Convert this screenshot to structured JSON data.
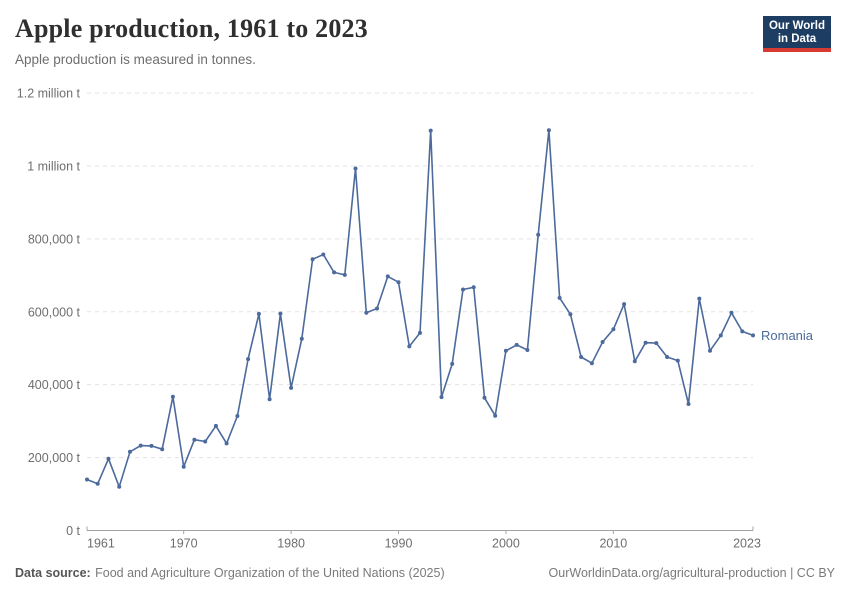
{
  "header": {
    "title": "Apple production, 1961 to 2023",
    "subtitle": "Apple production is measured in tonnes.",
    "logo": {
      "line1": "Our World",
      "line2": "in Data"
    }
  },
  "chart_data": {
    "type": "line",
    "title": "Apple production, 1961 to 2023",
    "ylabel": "",
    "xlabel": "",
    "unit": "tonnes",
    "xlim": [
      1961,
      2023
    ],
    "ylim": [
      0,
      1200000
    ],
    "grid": "horizontal-dashed",
    "legend_position": "end-of-line-label",
    "x_ticks": [
      1961,
      1970,
      1980,
      1990,
      2000,
      2010,
      2023
    ],
    "y_ticks": [
      {
        "value": 0,
        "label": "0 t"
      },
      {
        "value": 200000,
        "label": "200,000 t"
      },
      {
        "value": 400000,
        "label": "400,000 t"
      },
      {
        "value": 600000,
        "label": "600,000 t"
      },
      {
        "value": 800000,
        "label": "800,000 t"
      },
      {
        "value": 1000000,
        "label": "1 million t"
      },
      {
        "value": 1200000,
        "label": "1.2 million t"
      }
    ],
    "series": [
      {
        "name": "Romania",
        "color": "#4c6a9c",
        "years": [
          1961,
          1962,
          1963,
          1964,
          1965,
          1966,
          1967,
          1968,
          1969,
          1970,
          1971,
          1972,
          1973,
          1974,
          1975,
          1976,
          1977,
          1978,
          1979,
          1980,
          1981,
          1982,
          1983,
          1984,
          1985,
          1986,
          1987,
          1988,
          1989,
          1990,
          1991,
          1992,
          1993,
          1994,
          1995,
          1996,
          1997,
          1998,
          1999,
          2000,
          2001,
          2002,
          2003,
          2004,
          2005,
          2006,
          2007,
          2008,
          2009,
          2010,
          2011,
          2012,
          2013,
          2014,
          2015,
          2016,
          2017,
          2018,
          2019,
          2020,
          2021,
          2022,
          2023
        ],
        "values": [
          140000,
          128000,
          197000,
          120000,
          216000,
          233000,
          232000,
          223000,
          367000,
          175000,
          249000,
          244000,
          287000,
          239000,
          314000,
          470000,
          594000,
          360000,
          595000,
          391000,
          526000,
          744000,
          757000,
          708000,
          701000,
          993000,
          597000,
          609000,
          697000,
          681000,
          505000,
          542000,
          1097000,
          366000,
          457000,
          661000,
          667000,
          364000,
          315000,
          493000,
          509000,
          495000,
          811000,
          1098000,
          638000,
          593000,
          476000,
          459000,
          517000,
          552000,
          621000,
          464000,
          515000,
          514000,
          476000,
          466000,
          347000,
          636000,
          493000,
          535000,
          597000,
          546000,
          535000
        ]
      }
    ]
  },
  "footer": {
    "source_label": "Data source:",
    "source_text": "Food and Agriculture Organization of the United Nations (2025)",
    "link_text": "OurWorldinData.org/agricultural-production | CC BY"
  }
}
